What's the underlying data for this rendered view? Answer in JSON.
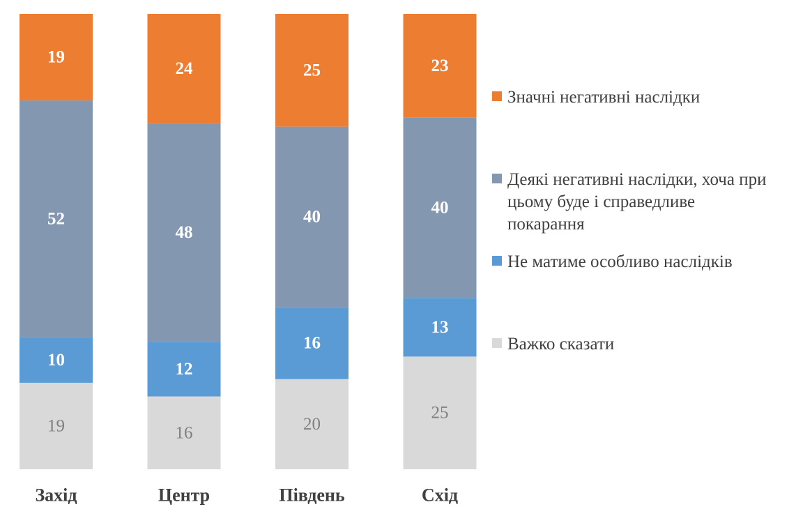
{
  "chart_data": {
    "type": "bar",
    "stacked": true,
    "percent_scale": true,
    "categories": [
      "Захід",
      "Центр",
      "Південь",
      "Схід"
    ],
    "series": [
      {
        "name": "Важко сказати",
        "color": "#d9d9d9",
        "label_color": "#7f7f7f",
        "values": [
          19,
          16,
          20,
          25
        ]
      },
      {
        "name": "Не матиме особливо наслідків",
        "color": "#5b9bd5",
        "label_color": "#ffffff",
        "values": [
          10,
          12,
          16,
          13
        ]
      },
      {
        "name": "Деякі негативні наслідки, хоча при цьому буде і справедливе покарання",
        "color": "#8497b0",
        "label_color": "#ffffff",
        "values": [
          52,
          48,
          40,
          40
        ]
      },
      {
        "name": "Значні негативні наслідки",
        "color": "#ed7d31",
        "label_color": "#ffffff",
        "values": [
          19,
          24,
          25,
          23
        ]
      }
    ],
    "legend_order": [
      3,
      2,
      1,
      0
    ],
    "legend_position": "right",
    "grid": false
  },
  "legend": {
    "items": [
      {
        "label": "Значні негативні наслідки",
        "color": "#ed7d31"
      },
      {
        "label": "Деякі негативні наслідки, хоча при цьому буде і справедливе покарання",
        "color": "#8497b0"
      },
      {
        "label": "Не матиме особливо наслідків",
        "color": "#5b9bd5"
      },
      {
        "label": "Важко сказати",
        "color": "#d9d9d9"
      }
    ]
  }
}
